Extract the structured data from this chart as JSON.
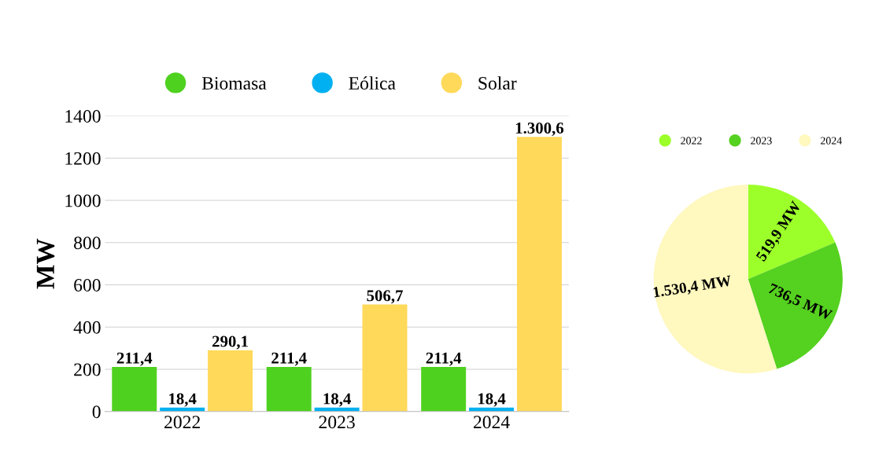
{
  "chart_data": [
    {
      "type": "bar",
      "ylabel": "MW",
      "categories": [
        "2022",
        "2023",
        "2024"
      ],
      "series": [
        {
          "name": "Biomasa",
          "color": "#4fd11f",
          "values": [
            211.4,
            211.4,
            211.4
          ],
          "value_labels": [
            "211,4",
            "211,4",
            "211,4"
          ]
        },
        {
          "name": "Eólica",
          "color": "#00b0f0",
          "values": [
            18.4,
            18.4,
            18.4
          ],
          "value_labels": [
            "18,4",
            "18,4",
            "18,4"
          ]
        },
        {
          "name": "Solar",
          "color": "#ffd95a",
          "values": [
            290.1,
            506.7,
            1300.6
          ],
          "value_labels": [
            "290,1",
            "506,7",
            "1.300,6"
          ]
        }
      ],
      "ylim": [
        0,
        1400
      ],
      "yticks": [
        0,
        200,
        400,
        600,
        800,
        1000,
        1200,
        1400
      ],
      "grid": "y",
      "legend": "top"
    },
    {
      "type": "pie",
      "categories": [
        "2022",
        "2023",
        "2024"
      ],
      "values": [
        519.9,
        736.5,
        1530.4
      ],
      "value_labels": [
        "519,9 MW",
        "736,5 MW",
        "1.530,4 MW"
      ],
      "colors": [
        "#9cff2a",
        "#55d11f",
        "#fff8bf"
      ],
      "legend": "top"
    }
  ]
}
